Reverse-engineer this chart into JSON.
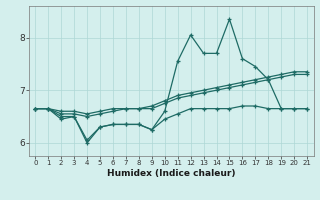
{
  "xlabel": "Humidex (Indice chaleur)",
  "background_color": "#d4efed",
  "grid_color": "#aed8d5",
  "line_color": "#1e6b65",
  "xlim": [
    -0.5,
    21.5
  ],
  "ylim": [
    5.75,
    8.6
  ],
  "xticks": [
    0,
    1,
    2,
    3,
    4,
    5,
    6,
    7,
    8,
    9,
    10,
    11,
    12,
    13,
    14,
    15,
    16,
    17,
    18,
    19,
    20,
    21
  ],
  "yticks": [
    6,
    7,
    8
  ],
  "series_main": [
    6.65,
    6.65,
    6.5,
    6.5,
    6.0,
    6.3,
    6.35,
    6.35,
    6.35,
    6.25,
    6.6,
    7.55,
    8.05,
    7.7,
    7.7,
    8.35,
    7.6,
    7.45,
    7.2,
    6.65,
    6.65,
    6.65
  ],
  "series_flat1": [
    6.65,
    6.65,
    6.55,
    6.55,
    6.5,
    6.55,
    6.6,
    6.65,
    6.65,
    6.65,
    6.75,
    6.85,
    6.9,
    6.95,
    7.0,
    7.05,
    7.1,
    7.15,
    7.2,
    7.25,
    7.3,
    7.3
  ],
  "series_flat2": [
    6.65,
    6.65,
    6.6,
    6.6,
    6.55,
    6.6,
    6.65,
    6.65,
    6.65,
    6.7,
    6.8,
    6.9,
    6.95,
    7.0,
    7.05,
    7.1,
    7.15,
    7.2,
    7.25,
    7.3,
    7.35,
    7.35
  ],
  "series_low": [
    6.65,
    6.65,
    6.45,
    6.5,
    6.05,
    6.3,
    6.35,
    6.35,
    6.35,
    6.25,
    6.45,
    6.55,
    6.65,
    6.65,
    6.65,
    6.65,
    6.7,
    6.7,
    6.65,
    6.65,
    6.65,
    6.65
  ],
  "x_data": [
    0,
    1,
    2,
    3,
    4,
    5,
    6,
    7,
    8,
    9,
    10,
    11,
    12,
    13,
    14,
    15,
    16,
    17,
    18,
    19,
    20,
    21
  ]
}
